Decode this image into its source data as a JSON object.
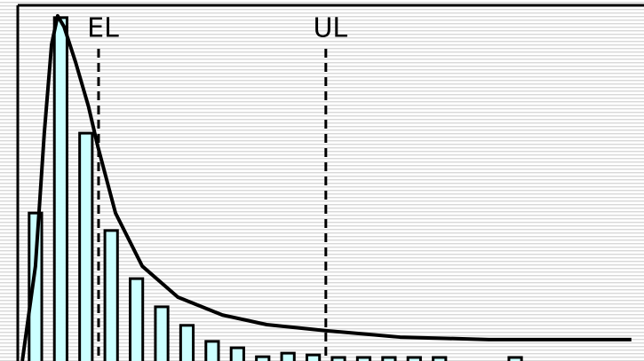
{
  "chart_data": {
    "type": "bar",
    "x": [
      0,
      1,
      2,
      3,
      4,
      5,
      6,
      7,
      8,
      9,
      10,
      11,
      12,
      13,
      14,
      15,
      16,
      19
    ],
    "values": [
      41.5,
      96.3,
      63.9,
      36.6,
      23.1,
      15.2,
      10,
      5.5,
      3.7,
      1.2,
      2.2,
      1.7,
      1,
      1,
      1,
      1,
      1,
      1
    ],
    "color": "#ccffff",
    "curve": {
      "type": "line",
      "x": [
        -0.52,
        0.0,
        0.35,
        0.64,
        0.88,
        1.13,
        1.59,
        2.1,
        2.47,
        3.17,
        4.23,
        5.64,
        7.4,
        9.16,
        11.52,
        14.44,
        17.96,
        23.6
      ],
      "values": [
        0,
        26.6,
        63.9,
        88.8,
        96.8,
        93.8,
        83.8,
        71.4,
        60.2,
        41.5,
        26.6,
        17.9,
        12.9,
        10.2,
        8.5,
        6.7,
        6,
        6
      ],
      "color": "#000000"
    },
    "annotations": [
      {
        "text": "EL",
        "x": 2.5
      },
      {
        "text": "UL",
        "x": 11.5
      }
    ],
    "xlim": [
      -0.7,
      24.1
    ],
    "ylim": [
      0,
      100
    ]
  }
}
